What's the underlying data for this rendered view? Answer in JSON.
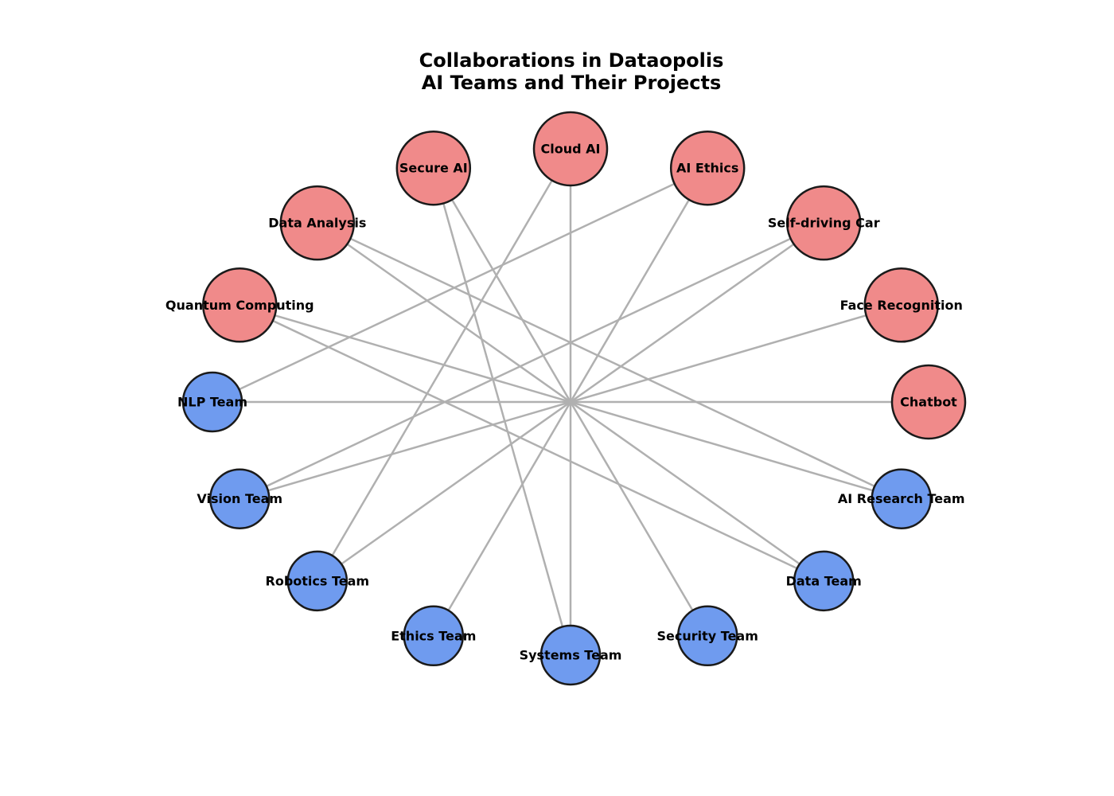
{
  "title": {
    "line1": "Collaborations in Dataopolis",
    "line2": "AI Teams and Their Projects"
  },
  "colors": {
    "project": "#f08a8a",
    "team": "#6f9bef",
    "edge": "#b0b0b0",
    "outline": "#1a1a1a"
  },
  "nodes": [
    {
      "id": "chatbot",
      "label": "Chatbot",
      "kind": "project"
    },
    {
      "id": "face-recognition",
      "label": "Face Recognition",
      "kind": "project"
    },
    {
      "id": "self-driving-car",
      "label": "Self-driving Car",
      "kind": "project"
    },
    {
      "id": "ai-ethics",
      "label": "AI Ethics",
      "kind": "project"
    },
    {
      "id": "cloud-ai",
      "label": "Cloud AI",
      "kind": "project"
    },
    {
      "id": "secure-ai",
      "label": "Secure AI",
      "kind": "project"
    },
    {
      "id": "data-analysis",
      "label": "Data Analysis",
      "kind": "project"
    },
    {
      "id": "quantum-computing",
      "label": "Quantum Computing",
      "kind": "project"
    },
    {
      "id": "nlp-team",
      "label": "NLP Team",
      "kind": "team"
    },
    {
      "id": "vision-team",
      "label": "Vision Team",
      "kind": "team"
    },
    {
      "id": "robotics-team",
      "label": "Robotics Team",
      "kind": "team"
    },
    {
      "id": "ethics-team",
      "label": "Ethics Team",
      "kind": "team"
    },
    {
      "id": "systems-team",
      "label": "Systems Team",
      "kind": "team"
    },
    {
      "id": "security-team",
      "label": "Security Team",
      "kind": "team"
    },
    {
      "id": "data-team",
      "label": "Data Team",
      "kind": "team"
    },
    {
      "id": "ai-research-team",
      "label": "AI Research Team",
      "kind": "team"
    }
  ],
  "edges": [
    [
      "nlp-team",
      "chatbot"
    ],
    [
      "nlp-team",
      "ai-ethics"
    ],
    [
      "vision-team",
      "face-recognition"
    ],
    [
      "vision-team",
      "self-driving-car"
    ],
    [
      "robotics-team",
      "self-driving-car"
    ],
    [
      "robotics-team",
      "cloud-ai"
    ],
    [
      "ethics-team",
      "ai-ethics"
    ],
    [
      "systems-team",
      "cloud-ai"
    ],
    [
      "systems-team",
      "secure-ai"
    ],
    [
      "security-team",
      "secure-ai"
    ],
    [
      "data-team",
      "data-analysis"
    ],
    [
      "data-team",
      "quantum-computing"
    ],
    [
      "ai-research-team",
      "data-analysis"
    ],
    [
      "ai-research-team",
      "quantum-computing"
    ]
  ]
}
